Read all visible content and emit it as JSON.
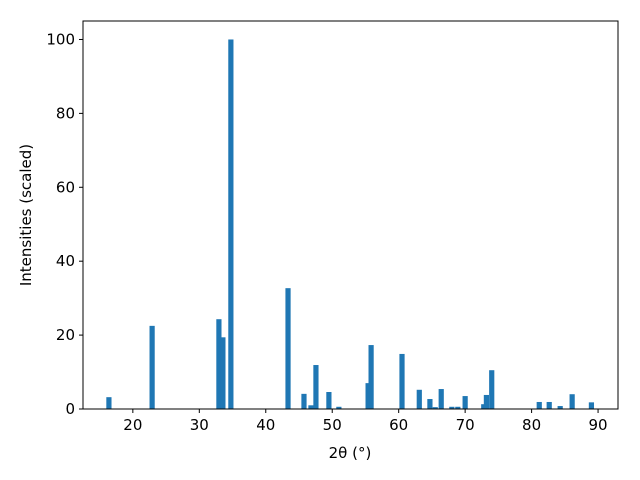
{
  "chart_data": {
    "type": "bar",
    "xlabel": "2θ (°)",
    "ylabel": "Intensities (scaled)",
    "x": [
      16.4,
      22.9,
      32.95,
      33.55,
      34.75,
      43.35,
      45.75,
      46.8,
      47.55,
      49.5,
      51.0,
      55.4,
      55.85,
      60.5,
      63.1,
      64.7,
      65.5,
      66.4,
      68.0,
      68.9,
      70.0,
      72.8,
      73.2,
      74.0,
      81.15,
      82.65,
      84.3,
      86.1,
      89.0
    ],
    "values": [
      3.2,
      22.5,
      24.3,
      19.4,
      100,
      32.7,
      4.1,
      1.0,
      11.9,
      4.6,
      0.6,
      7.0,
      17.3,
      14.9,
      5.2,
      2.7,
      0.5,
      5.4,
      0.6,
      0.6,
      3.5,
      1.3,
      3.8,
      10.5,
      1.9,
      1.9,
      0.8,
      4.0,
      1.8
    ],
    "color": "#1f77b4",
    "xlim": [
      12.5,
      93.0
    ],
    "xticks": [
      20,
      30,
      40,
      50,
      60,
      70,
      80,
      90
    ],
    "ylim": [
      0,
      105
    ],
    "yticks": [
      0,
      20,
      40,
      60,
      80,
      100
    ]
  }
}
